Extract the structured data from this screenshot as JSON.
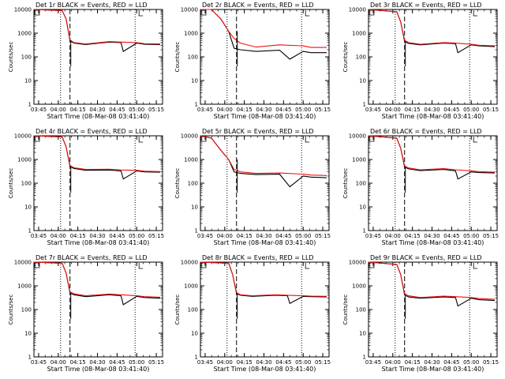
{
  "figure": {
    "xlabel": "Start Time (08-Mar-08 03:41:40)",
    "ylabel": "Counts/sec"
  },
  "x_ticks": [
    "03:45",
    "04:00",
    "04:15",
    "04:30",
    "04:45",
    "05:00",
    "05:15"
  ],
  "y_ticks": [
    "1",
    "10",
    "100",
    "1000",
    "10000"
  ],
  "colors": {
    "events": "#000000",
    "lld": "#ee1111",
    "axes": "#000000"
  },
  "chart_data": [
    {
      "type": "line",
      "title": "Det 1r BLACK = Events, RED = LLD",
      "xlabel": "Start Time (08-Mar-08 03:41:40)",
      "ylabel": "Counts/sec",
      "ylim": [
        1,
        10000
      ],
      "yscale": "log",
      "series": [
        {
          "name": "Events",
          "color": "#000000",
          "x": [
            3.69,
            4.05,
            4.1,
            4.15,
            4.2,
            4.35,
            4.65,
            4.8,
            4.83,
            5.0,
            5.1,
            5.3
          ],
          "values": [
            10000,
            9000,
            4000,
            480,
            380,
            330,
            420,
            400,
            170,
            380,
            340,
            330
          ]
        },
        {
          "name": "LLD",
          "color": "#ee1111",
          "x": [
            3.69,
            4.05,
            4.1,
            4.15,
            4.2,
            4.35,
            4.65,
            4.8,
            5.0,
            5.1,
            5.3
          ],
          "values": [
            10000,
            9000,
            4000,
            520,
            400,
            350,
            440,
            420,
            400,
            360,
            350
          ]
        }
      ]
    },
    {
      "type": "line",
      "title": "Det 2r BLACK = Events, RED = LLD",
      "xlabel": "Start Time (08-Mar-08 03:41:40)",
      "ylabel": "Counts/sec",
      "ylim": [
        1,
        10000
      ],
      "yscale": "log",
      "series": [
        {
          "name": "Events",
          "color": "#000000",
          "x": [
            3.69,
            3.83,
            3.95,
            4.05,
            4.12,
            4.2,
            4.4,
            4.7,
            4.83,
            5.0,
            5.1,
            5.3
          ],
          "values": [
            10000,
            10000,
            4000,
            1200,
            230,
            200,
            170,
            190,
            80,
            170,
            150,
            150
          ]
        },
        {
          "name": "LLD",
          "color": "#ee1111",
          "x": [
            3.69,
            3.83,
            3.95,
            4.05,
            4.12,
            4.2,
            4.4,
            4.7,
            5.0,
            5.1,
            5.3
          ],
          "values": [
            10000,
            10000,
            4000,
            1200,
            600,
            380,
            260,
            320,
            290,
            250,
            250
          ]
        }
      ]
    },
    {
      "type": "line",
      "title": "Det 3r BLACK = Events, RED = LLD",
      "xlabel": "Start Time (08-Mar-08 03:41:40)",
      "ylabel": "Counts/sec",
      "ylim": [
        1,
        10000
      ],
      "yscale": "log",
      "series": [
        {
          "name": "Events",
          "color": "#000000",
          "x": [
            3.69,
            4.05,
            4.1,
            4.15,
            4.2,
            4.35,
            4.65,
            4.8,
            4.83,
            5.0,
            5.1,
            5.3
          ],
          "values": [
            10000,
            8000,
            3000,
            450,
            370,
            320,
            380,
            360,
            150,
            320,
            290,
            270
          ]
        },
        {
          "name": "LLD",
          "color": "#ee1111",
          "x": [
            3.69,
            4.05,
            4.1,
            4.15,
            4.2,
            4.35,
            4.65,
            4.8,
            5.0,
            5.1,
            5.3
          ],
          "values": [
            10000,
            8000,
            3000,
            500,
            400,
            340,
            400,
            380,
            340,
            310,
            290
          ]
        }
      ]
    },
    {
      "type": "line",
      "title": "Det 4r BLACK = Events, RED = LLD",
      "xlabel": "Start Time (08-Mar-08 03:41:40)",
      "ylabel": "Counts/sec",
      "ylim": [
        1,
        10000
      ],
      "yscale": "log",
      "series": [
        {
          "name": "Events",
          "color": "#000000",
          "x": [
            3.69,
            4.05,
            4.1,
            4.15,
            4.2,
            4.35,
            4.65,
            4.8,
            4.83,
            5.0,
            5.1,
            5.3
          ],
          "values": [
            10000,
            9000,
            3500,
            500,
            420,
            350,
            360,
            330,
            150,
            330,
            300,
            290
          ]
        },
        {
          "name": "LLD",
          "color": "#ee1111",
          "x": [
            3.69,
            4.05,
            4.1,
            4.15,
            4.2,
            4.35,
            4.65,
            4.8,
            5.0,
            5.1,
            5.3
          ],
          "values": [
            10000,
            9000,
            3500,
            560,
            450,
            380,
            390,
            360,
            350,
            320,
            310
          ]
        }
      ]
    },
    {
      "type": "line",
      "title": "Det 5r BLACK = Events, RED = LLD",
      "xlabel": "Start Time (08-Mar-08 03:41:40)",
      "ylabel": "Counts/sec",
      "ylim": [
        1,
        10000
      ],
      "yscale": "log",
      "series": [
        {
          "name": "Events",
          "color": "#000000",
          "x": [
            3.69,
            3.83,
            3.95,
            4.05,
            4.12,
            4.2,
            4.4,
            4.7,
            4.83,
            5.0,
            5.1,
            5.3
          ],
          "values": [
            10000,
            8000,
            2500,
            1000,
            300,
            260,
            230,
            240,
            70,
            200,
            180,
            170
          ]
        },
        {
          "name": "LLD",
          "color": "#ee1111",
          "x": [
            3.69,
            3.83,
            3.95,
            4.05,
            4.12,
            4.2,
            4.4,
            4.7,
            5.0,
            5.1,
            5.3
          ],
          "values": [
            10000,
            8000,
            2500,
            1000,
            380,
            300,
            260,
            270,
            240,
            220,
            210
          ]
        }
      ]
    },
    {
      "type": "line",
      "title": "Det 6r BLACK = Events, RED = LLD",
      "xlabel": "Start Time (08-Mar-08 03:41:40)",
      "ylabel": "Counts/sec",
      "ylim": [
        1,
        10000
      ],
      "yscale": "log",
      "series": [
        {
          "name": "Events",
          "color": "#000000",
          "x": [
            3.69,
            4.05,
            4.1,
            4.15,
            4.2,
            4.35,
            4.65,
            4.8,
            4.83,
            5.0,
            5.1,
            5.3
          ],
          "values": [
            10000,
            8000,
            3000,
            480,
            400,
            340,
            380,
            330,
            150,
            300,
            280,
            270
          ]
        },
        {
          "name": "LLD",
          "color": "#ee1111",
          "x": [
            3.69,
            4.05,
            4.1,
            4.15,
            4.2,
            4.35,
            4.65,
            4.8,
            5.0,
            5.1,
            5.3
          ],
          "values": [
            10000,
            8000,
            3000,
            540,
            440,
            370,
            410,
            370,
            330,
            310,
            290
          ]
        }
      ]
    },
    {
      "type": "line",
      "title": "Det 7r BLACK = Events, RED = LLD",
      "xlabel": "Start Time (08-Mar-08 03:41:40)",
      "ylabel": "Counts/sec",
      "ylim": [
        1,
        10000
      ],
      "yscale": "log",
      "series": [
        {
          "name": "Events",
          "color": "#000000",
          "x": [
            3.69,
            4.05,
            4.1,
            4.15,
            4.2,
            4.35,
            4.65,
            4.8,
            4.83,
            5.0,
            5.1,
            5.3
          ],
          "values": [
            10000,
            9000,
            3500,
            500,
            420,
            350,
            420,
            380,
            160,
            360,
            320,
            300
          ]
        },
        {
          "name": "LLD",
          "color": "#ee1111",
          "x": [
            3.69,
            4.05,
            4.1,
            4.15,
            4.2,
            4.35,
            4.65,
            4.8,
            5.0,
            5.1,
            5.3
          ],
          "values": [
            10000,
            9000,
            3500,
            560,
            460,
            380,
            450,
            420,
            380,
            350,
            330
          ]
        }
      ]
    },
    {
      "type": "line",
      "title": "Det 8r BLACK = Events, RED = LLD",
      "xlabel": "Start Time (08-Mar-08 03:41:40)",
      "ylabel": "Counts/sec",
      "ylim": [
        1,
        10000
      ],
      "yscale": "log",
      "series": [
        {
          "name": "Events",
          "color": "#000000",
          "x": [
            3.69,
            4.05,
            4.1,
            4.15,
            4.2,
            4.35,
            4.65,
            4.8,
            4.83,
            5.0,
            5.1,
            5.3
          ],
          "values": [
            10000,
            9000,
            3000,
            480,
            400,
            360,
            400,
            380,
            180,
            360,
            350,
            340
          ]
        },
        {
          "name": "LLD",
          "color": "#ee1111",
          "x": [
            3.69,
            4.05,
            4.1,
            4.15,
            4.2,
            4.35,
            4.65,
            4.8,
            5.0,
            5.1,
            5.3
          ],
          "values": [
            10000,
            9000,
            3000,
            520,
            420,
            380,
            420,
            400,
            380,
            370,
            360
          ]
        }
      ]
    },
    {
      "type": "line",
      "title": "Det 9r BLACK = Events, RED = LLD",
      "xlabel": "Start Time (08-Mar-08 03:41:40)",
      "ylabel": "Counts/sec",
      "ylim": [
        1,
        10000
      ],
      "yscale": "log",
      "series": [
        {
          "name": "Events",
          "color": "#000000",
          "x": [
            3.69,
            4.05,
            4.1,
            4.15,
            4.2,
            4.35,
            4.65,
            4.8,
            4.83,
            5.0,
            5.1,
            5.3
          ],
          "values": [
            10000,
            8000,
            3000,
            420,
            340,
            300,
            340,
            320,
            140,
            300,
            260,
            240
          ]
        },
        {
          "name": "LLD",
          "color": "#ee1111",
          "x": [
            3.69,
            4.05,
            4.1,
            4.15,
            4.2,
            4.35,
            4.65,
            4.8,
            5.0,
            5.1,
            5.3
          ],
          "values": [
            10000,
            8000,
            3000,
            470,
            380,
            320,
            370,
            350,
            320,
            290,
            270
          ]
        }
      ]
    }
  ]
}
